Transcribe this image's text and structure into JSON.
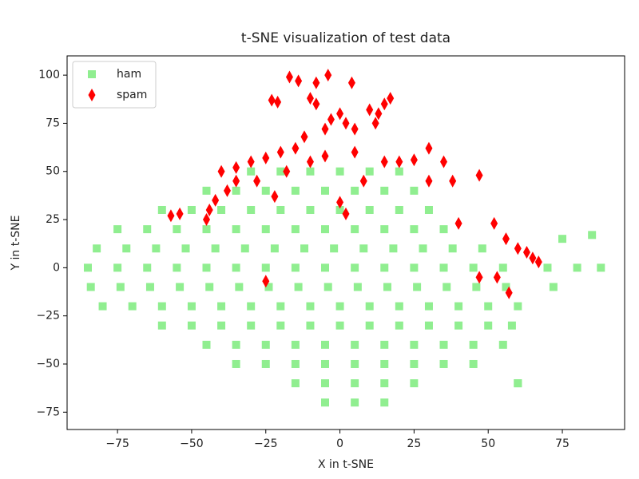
{
  "chart_data": {
    "type": "scatter",
    "title": "t-SNE visualization of test data",
    "xlabel": "X in t-SNE",
    "ylabel": "Y in t-SNE",
    "xlim": [
      -92,
      96
    ],
    "ylim": [
      -84,
      110
    ],
    "xticks": [
      {
        "value": -75,
        "label": "−75"
      },
      {
        "value": -50,
        "label": "−50"
      },
      {
        "value": -25,
        "label": "−25"
      },
      0,
      25,
      50,
      75
    ],
    "yticks": [
      {
        "value": -75,
        "label": "−75"
      },
      {
        "value": -50,
        "label": "−50"
      },
      {
        "value": -25,
        "label": "−25"
      },
      0,
      25,
      50,
      75,
      100
    ],
    "legend": "upper left",
    "series": [
      {
        "name": "ham",
        "color": "#90ee90",
        "marker": "square",
        "x": [
          -30,
          -20,
          -10,
          0,
          10,
          20,
          -45,
          -35,
          -25,
          -15,
          -5,
          5,
          15,
          25,
          -60,
          -50,
          -40,
          -30,
          -20,
          -10,
          0,
          10,
          20,
          30,
          -75,
          -65,
          -55,
          -45,
          -35,
          -25,
          -15,
          -5,
          5,
          15,
          25,
          35,
          -82,
          -72,
          -62,
          -52,
          -42,
          -32,
          -22,
          -12,
          -2,
          8,
          18,
          28,
          38,
          48,
          75,
          85,
          -85,
          -75,
          -65,
          -55,
          -45,
          -35,
          -25,
          -15,
          -5,
          5,
          15,
          25,
          35,
          45,
          55,
          70,
          80,
          88,
          -84,
          -74,
          -64,
          -54,
          -44,
          -34,
          -24,
          -14,
          -4,
          6,
          16,
          26,
          36,
          46,
          56,
          72,
          -80,
          -70,
          -60,
          -50,
          -40,
          -30,
          -20,
          -10,
          0,
          10,
          20,
          30,
          40,
          50,
          60,
          -60,
          -50,
          -40,
          -30,
          -20,
          -10,
          0,
          10,
          20,
          30,
          40,
          50,
          58,
          -45,
          -35,
          -25,
          -15,
          -5,
          5,
          15,
          25,
          35,
          45,
          55,
          -35,
          -25,
          -15,
          -5,
          5,
          15,
          25,
          35,
          45,
          60,
          -15,
          -5,
          5,
          15,
          25,
          60,
          -5,
          5,
          15
        ],
        "y": [
          50,
          50,
          50,
          50,
          50,
          50,
          40,
          40,
          40,
          40,
          40,
          40,
          40,
          40,
          30,
          30,
          30,
          30,
          30,
          30,
          30,
          30,
          30,
          30,
          20,
          20,
          20,
          20,
          20,
          20,
          20,
          20,
          20,
          20,
          20,
          20,
          10,
          10,
          10,
          10,
          10,
          10,
          10,
          10,
          10,
          10,
          10,
          10,
          10,
          10,
          15,
          17,
          0,
          0,
          0,
          0,
          0,
          0,
          0,
          0,
          0,
          0,
          0,
          0,
          0,
          0,
          0,
          0,
          0,
          0,
          -10,
          -10,
          -10,
          -10,
          -10,
          -10,
          -10,
          -10,
          -10,
          -10,
          -10,
          -10,
          -10,
          -10,
          -10,
          -10,
          -20,
          -20,
          -20,
          -20,
          -20,
          -20,
          -20,
          -20,
          -20,
          -20,
          -20,
          -20,
          -20,
          -20,
          -20,
          -30,
          -30,
          -30,
          -30,
          -30,
          -30,
          -30,
          -30,
          -30,
          -30,
          -30,
          -30,
          -30,
          -40,
          -40,
          -40,
          -40,
          -40,
          -40,
          -40,
          -40,
          -40,
          -40,
          -40,
          -50,
          -50,
          -50,
          -50,
          -50,
          -50,
          -50,
          -50,
          -50,
          -60,
          -60,
          -60,
          -60,
          -60,
          -60,
          -60,
          -70,
          -70,
          -70
        ]
      },
      {
        "name": "spam",
        "color": "#ff0000",
        "marker": "thin-diamond",
        "x": [
          -17,
          -14,
          -8,
          -4,
          4,
          -23,
          -21,
          -10,
          -8,
          0,
          -3,
          2,
          5,
          -5,
          10,
          13,
          15,
          17,
          12,
          -12,
          -15,
          -20,
          -25,
          -30,
          -35,
          -40,
          -38,
          -42,
          -45,
          -44,
          -28,
          -22,
          -10,
          -5,
          5,
          15,
          20,
          25,
          30,
          35,
          38,
          47,
          40,
          52,
          56,
          60,
          63,
          65,
          67,
          47,
          53,
          57,
          -25,
          0,
          2,
          -57,
          -54,
          -35,
          -18,
          8,
          30
        ],
        "y": [
          99,
          97,
          96,
          100,
          96,
          87,
          86,
          88,
          85,
          80,
          77,
          75,
          72,
          72,
          82,
          80,
          85,
          88,
          75,
          68,
          62,
          60,
          57,
          55,
          52,
          50,
          40,
          35,
          25,
          30,
          45,
          37,
          55,
          58,
          60,
          55,
          55,
          56,
          62,
          55,
          45,
          48,
          23,
          23,
          15,
          10,
          8,
          5,
          3,
          -5,
          -5,
          -13,
          -7,
          34,
          28,
          27,
          28,
          45,
          50,
          45,
          45
        ]
      }
    ]
  }
}
